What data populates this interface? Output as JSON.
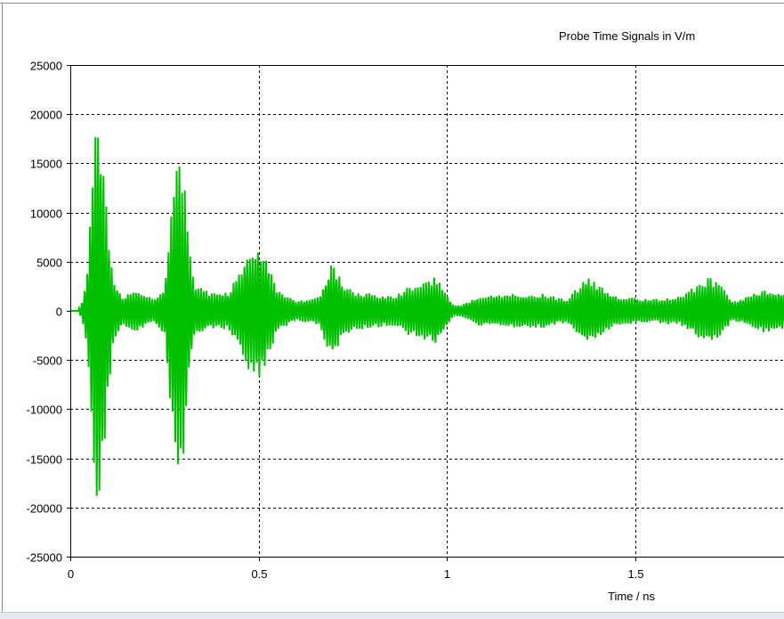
{
  "chart_data": {
    "type": "line",
    "title": "Probe Time Signals in V/m",
    "xlabel": "Time / ns",
    "ylabel": "",
    "xlim": [
      0,
      1.9
    ],
    "ylim": [
      -25000,
      25000
    ],
    "grid": true,
    "x_ticks": [
      "0",
      "0.5",
      "1",
      "1.5"
    ],
    "x_tick_values": [
      0,
      0.5,
      1,
      1.5
    ],
    "y_ticks": [
      "25000",
      "20000",
      "15000",
      "10000",
      "5000",
      "0",
      "-5000",
      "-10000",
      "-15000",
      "-20000",
      "-25000"
    ],
    "y_tick_values": [
      25000,
      20000,
      15000,
      10000,
      5000,
      0,
      -5000,
      -10000,
      -15000,
      -20000,
      -25000
    ],
    "series": [
      {
        "color": "#00c000",
        "envelope_peak_amplitude": [
          [
            0.0,
            0
          ],
          [
            0.02,
            0
          ],
          [
            0.03,
            800
          ],
          [
            0.045,
            4000
          ],
          [
            0.06,
            15000
          ],
          [
            0.073,
            21500
          ],
          [
            0.085,
            17000
          ],
          [
            0.1,
            9000
          ],
          [
            0.115,
            3500
          ],
          [
            0.14,
            1500
          ],
          [
            0.18,
            2200
          ],
          [
            0.22,
            1200
          ],
          [
            0.25,
            2500
          ],
          [
            0.27,
            12000
          ],
          [
            0.286,
            17500
          ],
          [
            0.3,
            15000
          ],
          [
            0.315,
            7000
          ],
          [
            0.33,
            2800
          ],
          [
            0.38,
            1800
          ],
          [
            0.42,
            2000
          ],
          [
            0.45,
            4000
          ],
          [
            0.48,
            6500
          ],
          [
            0.5,
            7000
          ],
          [
            0.52,
            5500
          ],
          [
            0.55,
            2200
          ],
          [
            0.6,
            1000
          ],
          [
            0.66,
            1500
          ],
          [
            0.69,
            4500
          ],
          [
            0.7,
            5000
          ],
          [
            0.72,
            3000
          ],
          [
            0.75,
            2000
          ],
          [
            0.8,
            1800
          ],
          [
            0.86,
            1500
          ],
          [
            0.9,
            2500
          ],
          [
            0.93,
            2800
          ],
          [
            0.97,
            3500
          ],
          [
            0.99,
            2500
          ],
          [
            1.02,
            500
          ],
          [
            1.04,
            600
          ],
          [
            1.08,
            1500
          ],
          [
            1.15,
            1700
          ],
          [
            1.25,
            1800
          ],
          [
            1.32,
            1200
          ],
          [
            1.37,
            3500
          ],
          [
            1.4,
            2800
          ],
          [
            1.45,
            1500
          ],
          [
            1.55,
            1200
          ],
          [
            1.62,
            1500
          ],
          [
            1.66,
            2500
          ],
          [
            1.7,
            3500
          ],
          [
            1.73,
            2500
          ],
          [
            1.76,
            1000
          ],
          [
            1.8,
            1500
          ],
          [
            1.84,
            2200
          ],
          [
            1.9,
            2000
          ]
        ]
      }
    ]
  }
}
